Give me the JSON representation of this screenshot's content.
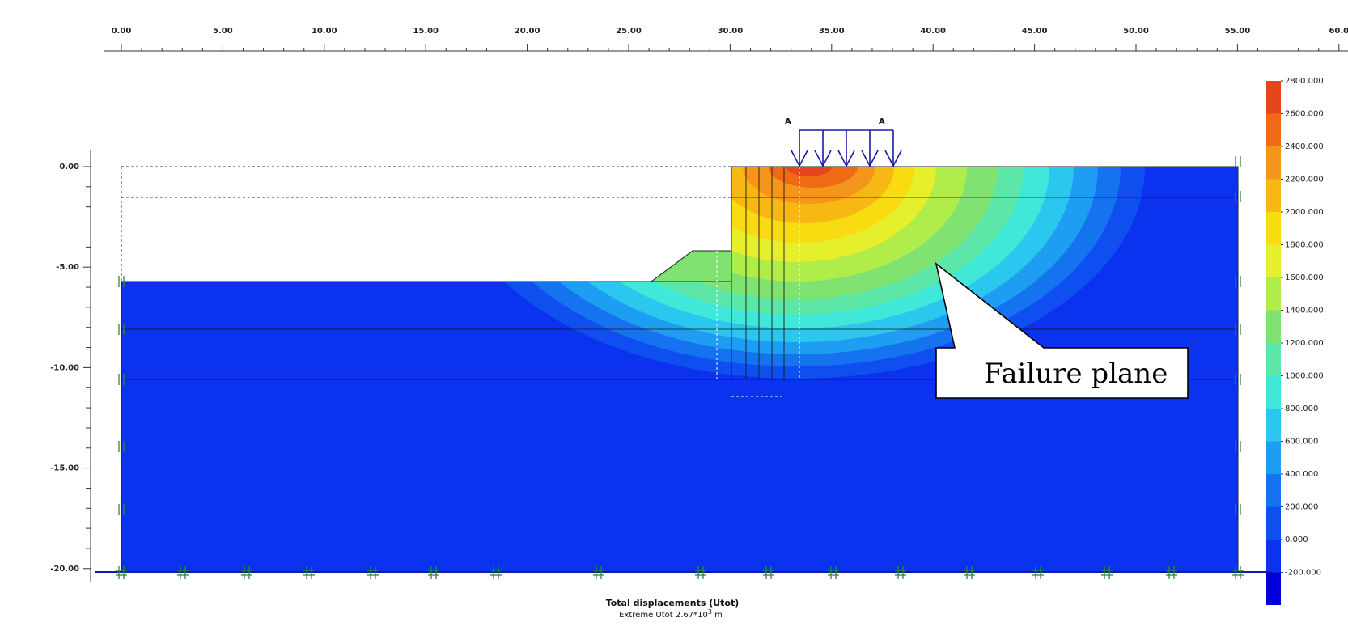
{
  "ruler_x": {
    "labels": [
      "0.00",
      "5.00",
      "10.00",
      "15.00",
      "20.00",
      "25.00",
      "30.00",
      "35.00",
      "40.00",
      "45.00",
      "50.00",
      "55.00",
      "60.0"
    ]
  },
  "ruler_y": {
    "labels": [
      "0.00",
      "-5.00",
      "-10.00",
      "-15.00",
      "-20.00"
    ]
  },
  "load": {
    "labels": [
      "A",
      "A"
    ]
  },
  "legend": {
    "values": [
      "2800.000",
      "2600.000",
      "2400.000",
      "2200.000",
      "2000.000",
      "1800.000",
      "1600.000",
      "1400.000",
      "1200.000",
      "1000.000",
      "800.000",
      "600.000",
      "400.000",
      "200.000",
      "0.000",
      "-200.000"
    ],
    "colors": [
      "#e5461b",
      "#f06a16",
      "#f3961b",
      "#f7b813",
      "#f9db12",
      "#e6ef2b",
      "#b0ec4a",
      "#80e271",
      "#5ce7a8",
      "#3fe8d8",
      "#2bc7ef",
      "#1e9ef2",
      "#1673f0",
      "#0f4ff0",
      "#0a32ef",
      "#0000d8"
    ]
  },
  "callout": {
    "text": "Failure plane"
  },
  "caption": {
    "title": "Total displacements (Utot)",
    "subtitle_prefix": "Extreme Utot 2.67*10",
    "subtitle_exp": "3",
    "subtitle_unit": " m"
  }
}
